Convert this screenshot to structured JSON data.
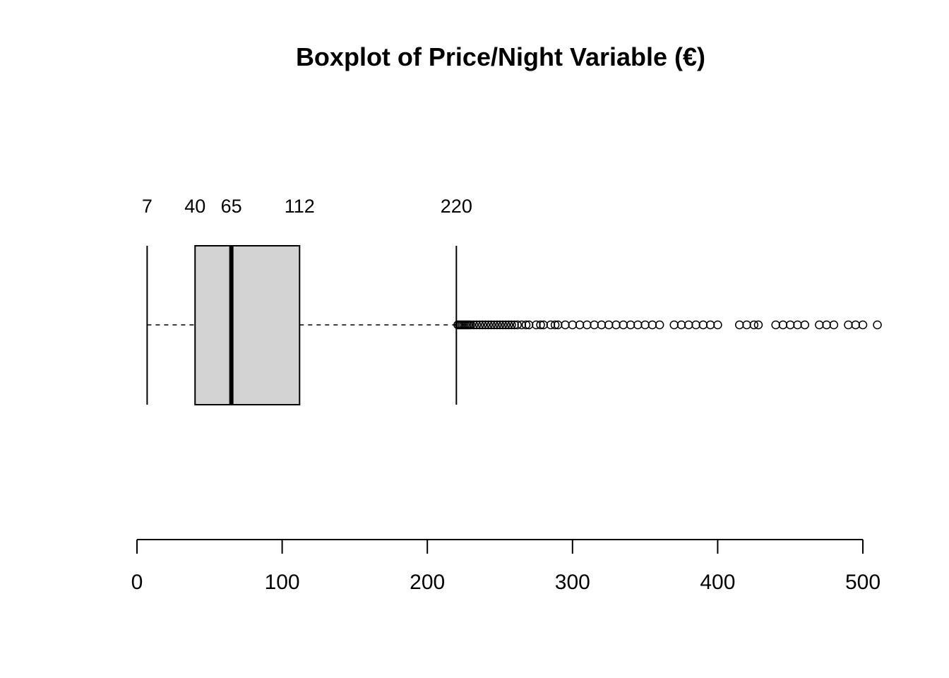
{
  "chart_data": {
    "type": "box",
    "title": "Boxplot of Price/Night Variable (€)",
    "orientation": "horizontal",
    "xlim": [
      0,
      500
    ],
    "x_ticks": [
      0,
      100,
      200,
      300,
      400,
      500
    ],
    "x_tick_labels": [
      "0",
      "100",
      "200",
      "300",
      "400",
      "500"
    ],
    "stats": {
      "min_whisker": 7,
      "q1": 40,
      "median": 65,
      "q3": 112,
      "max_whisker": 220
    },
    "stat_labels": [
      "7",
      "40",
      "65",
      "112",
      "220"
    ],
    "outliers": [
      221,
      222,
      223,
      224,
      225,
      226,
      227,
      228,
      229,
      230,
      232,
      234,
      236,
      238,
      240,
      242,
      244,
      246,
      248,
      250,
      252,
      254,
      256,
      258,
      260,
      262,
      265,
      268,
      270,
      275,
      278,
      280,
      285,
      288,
      290,
      295,
      300,
      305,
      310,
      315,
      320,
      325,
      330,
      335,
      340,
      345,
      350,
      355,
      360,
      370,
      375,
      380,
      385,
      390,
      395,
      400,
      415,
      420,
      425,
      428,
      440,
      445,
      450,
      455,
      460,
      470,
      475,
      480,
      490,
      495,
      500,
      510
    ],
    "box_fill": "#d3d3d3",
    "line_color": "#000000",
    "grid": false
  }
}
